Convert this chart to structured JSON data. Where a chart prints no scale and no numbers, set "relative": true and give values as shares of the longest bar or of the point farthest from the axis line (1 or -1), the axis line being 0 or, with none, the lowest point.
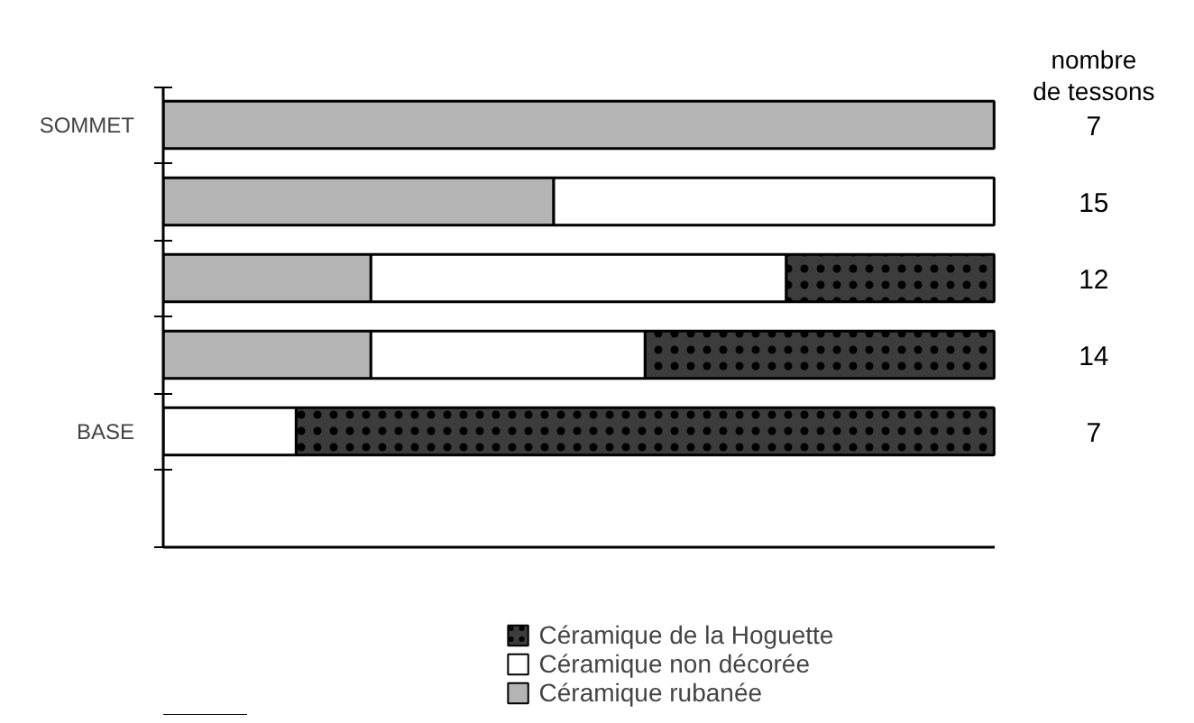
{
  "chart_data": {
    "type": "bar",
    "orientation": "horizontal",
    "stacked": true,
    "relative": true,
    "categories": [
      "SOMMET",
      null,
      null,
      null,
      "BASE",
      null
    ],
    "series": [
      {
        "name": "Céramique rubanée",
        "color": "#b4b4b4",
        "values": [
          1.0,
          0.47,
          0.25,
          0.25,
          0,
          null
        ]
      },
      {
        "name": "Céramique non décorée",
        "color": "#ffffff",
        "values": [
          0,
          0.53,
          0.5,
          0.33,
          0.16,
          null
        ]
      },
      {
        "name": "Céramique de la Hoguette",
        "color": "#3c3c3c",
        "values": [
          0,
          0,
          0.25,
          0.42,
          0.84,
          null
        ]
      }
    ],
    "annotations": [
      "nombre de tessons",
      "7",
      "15",
      "12",
      "14",
      "7"
    ],
    "legend": "bottom",
    "grid": false
  }
}
